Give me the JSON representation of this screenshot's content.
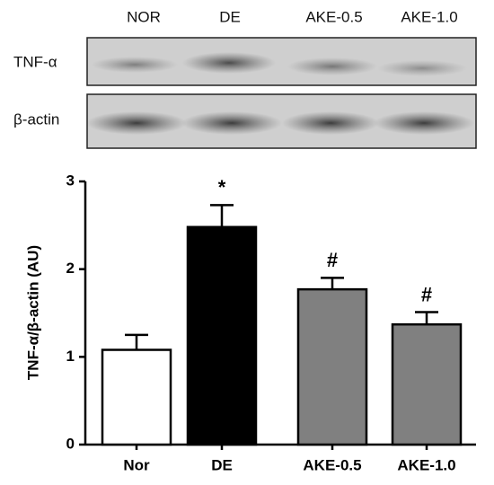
{
  "blot": {
    "lanes": [
      "NOR",
      "DE",
      "AKE-0.5",
      "AKE-1.0"
    ],
    "rows": [
      "TNF-α",
      "β-actin"
    ]
  },
  "chart_data": {
    "type": "bar",
    "categories": [
      "Nor",
      "DE",
      "AKE-0.5",
      "AKE-1.0"
    ],
    "values": [
      1.08,
      2.48,
      1.77,
      1.37
    ],
    "errors": [
      0.17,
      0.25,
      0.13,
      0.14
    ],
    "colors": [
      "#ffffff",
      "#000000",
      "#808080",
      "#808080"
    ],
    "annotations": [
      null,
      "*",
      "#",
      "#"
    ],
    "ylabel": "TNF-α/β-actin (AU)",
    "ylim": [
      0,
      3
    ],
    "yticks": [
      0,
      1,
      2,
      3
    ]
  }
}
